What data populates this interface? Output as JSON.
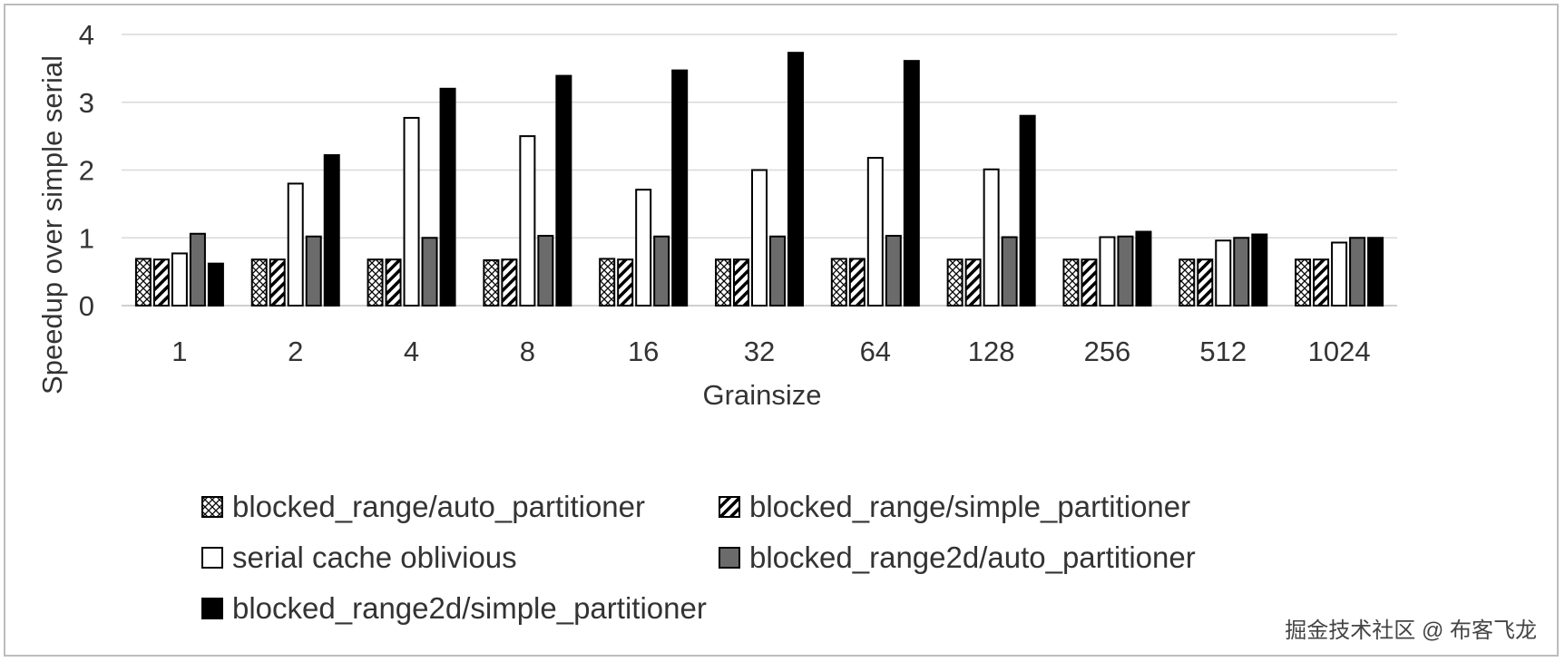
{
  "chart_data": {
    "type": "bar",
    "title": "",
    "xlabel": "Grainsize",
    "ylabel": "Speedup over simple serial",
    "ylim": [
      0,
      4
    ],
    "yticks": [
      "0",
      "1",
      "2",
      "3",
      "4"
    ],
    "grid": true,
    "legend_position": "bottom",
    "categories": [
      "1",
      "2",
      "4",
      "8",
      "16",
      "32",
      "64",
      "128",
      "256",
      "512",
      "1024"
    ],
    "series": [
      {
        "name": "blocked_range/auto_partitioner",
        "pattern": "crosshatch",
        "values": [
          0.69,
          0.68,
          0.68,
          0.67,
          0.69,
          0.68,
          0.69,
          0.68,
          0.68,
          0.68,
          0.68
        ]
      },
      {
        "name": "blocked_range/simple_partitioner",
        "pattern": "diagonal",
        "values": [
          0.68,
          0.68,
          0.68,
          0.68,
          0.68,
          0.68,
          0.69,
          0.68,
          0.68,
          0.68,
          0.68
        ]
      },
      {
        "name": "serial cache oblivious",
        "pattern": "white",
        "values": [
          0.77,
          1.8,
          2.77,
          2.5,
          1.71,
          2.0,
          2.18,
          2.01,
          1.01,
          0.96,
          0.93
        ]
      },
      {
        "name": "blocked_range2d/auto_partitioner",
        "pattern": "gray",
        "values": [
          1.06,
          1.02,
          1.0,
          1.03,
          1.02,
          1.02,
          1.03,
          1.01,
          1.02,
          1.0,
          1.0
        ]
      },
      {
        "name": "blocked_range2d/simple_partitioner",
        "pattern": "black",
        "values": [
          0.62,
          2.22,
          3.2,
          3.39,
          3.47,
          3.73,
          3.61,
          2.8,
          1.09,
          1.05,
          1.0
        ]
      }
    ]
  },
  "watermark": "掘金技术社区 @ 布客飞龙",
  "colors": {
    "gray_fill": "#6b6b6b",
    "black_fill": "#000000",
    "grid": "#d9d9d9",
    "text": "#333333"
  }
}
